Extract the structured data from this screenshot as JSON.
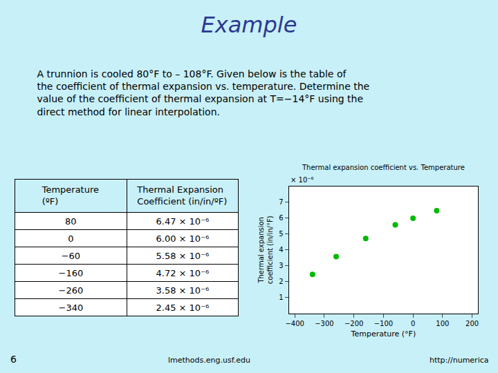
{
  "title": "Example",
  "subtitle": " A trunnion is cooled 80°F to – 108°F. Given below is the table of\n the coefficient of thermal expansion vs. temperature. Determine the\n value of the coefficient of thermal expansion at T=−14°F using the\n direct method for linear interpolation.",
  "annotations": [
    "6",
    "lmethods.eng.usf.edu",
    "http://numerica"
  ],
  "chart_data": [
    {
      "type": "table",
      "columns": [
        "Temperature\n(ºF)",
        "Thermal Expansion\nCoefficient (in/in/ºF)"
      ],
      "rows": [
        [
          "80",
          "6.47 × 10⁻⁶"
        ],
        [
          "0",
          "6.00 × 10⁻⁶"
        ],
        [
          "−60",
          "5.58 × 10⁻⁶"
        ],
        [
          "−160",
          "4.72 × 10⁻⁶"
        ],
        [
          "−260",
          "3.58 × 10⁻⁶"
        ],
        [
          "−340",
          "2.45 × 10⁻⁶"
        ]
      ]
    },
    {
      "type": "scatter",
      "title": "Thermal expansion coefficient vs. Temperature",
      "x_label": "Temperature (°F)",
      "y_label": "Thermal expansion\ncoefficient (in/in/°F)",
      "x": [
        -340,
        -260,
        -160,
        -60,
        0,
        80
      ],
      "values": [
        2.45,
        3.58,
        4.72,
        5.58,
        6.0,
        6.47
      ],
      "color": "#00bb00",
      "xlim": [
        -420,
        220
      ],
      "ylim": [
        0,
        8
      ],
      "xticks": [
        -400,
        -300,
        -200,
        -100,
        0,
        100,
        200
      ],
      "yticks": [
        1,
        2,
        3,
        4,
        5,
        6,
        7
      ],
      "grid": false,
      "annotations": [
        "× 10⁻⁶"
      ]
    }
  ]
}
